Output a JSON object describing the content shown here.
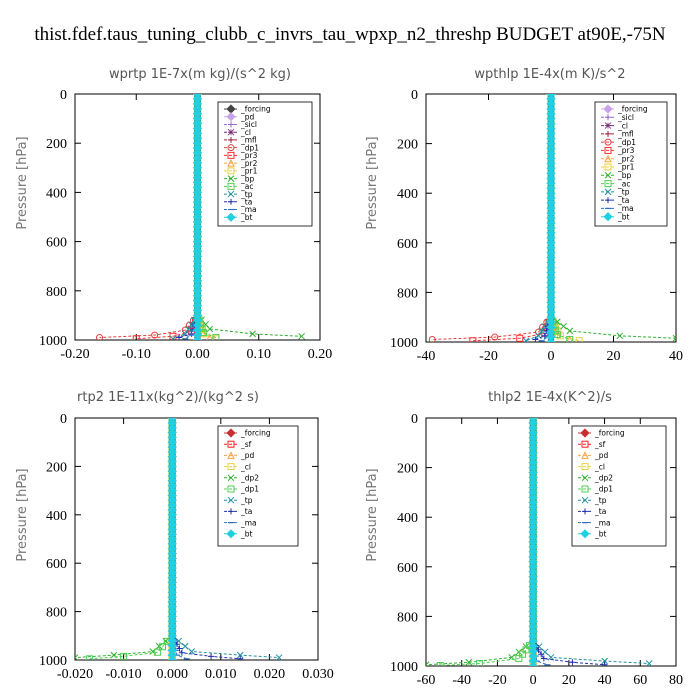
{
  "figure_title": "thist.fdef.taus_tuning_clubb_c_invrs_tau_wpxp_n2_threshp  BUDGET at90E,-75N",
  "chart_data": [
    {
      "type": "line",
      "title": "wprtp  1E-7x(m kg)/(s^2 kg)",
      "ylabel": "Pressure [hPa]",
      "xlim": [
        -0.2,
        0.2
      ],
      "ylim": [
        1000,
        0
      ],
      "xticks": [
        "-0.20",
        "-0.10",
        "0.00",
        "0.10",
        "0.20"
      ],
      "yticks": [
        "0",
        "200",
        "400",
        "600",
        "800",
        "1000"
      ],
      "series": [
        {
          "name": "_forcing",
          "color": "#444444",
          "marker": "diamond",
          "x": [
            0,
            0,
            0,
            0,
            0
          ],
          "y": [
            0,
            400,
            900,
            960,
            1000
          ]
        },
        {
          "name": "_pd",
          "color": "#c8a2e8",
          "marker": "diamond",
          "x": [
            0,
            0,
            0,
            0
          ],
          "y": [
            0,
            500,
            960,
            1000
          ]
        },
        {
          "name": "_sicl",
          "color": "#9966cc",
          "marker": "plus",
          "x": [
            0,
            0,
            0,
            0
          ],
          "y": [
            0,
            500,
            960,
            1000
          ]
        },
        {
          "name": "_cl",
          "color": "#7a2a7a",
          "marker": "star",
          "x": [
            0,
            0,
            0,
            0
          ],
          "y": [
            0,
            500,
            960,
            1000
          ]
        },
        {
          "name": "_mfl",
          "color": "#a0203a",
          "marker": "plus",
          "x": [
            0,
            0,
            0,
            0
          ],
          "y": [
            0,
            500,
            960,
            1000
          ]
        },
        {
          "name": "_dp1",
          "color": "#e04040",
          "marker": "circle",
          "x": [
            0,
            0,
            -0.02,
            -0.07,
            -0.16
          ],
          "y": [
            0,
            900,
            960,
            980,
            990
          ]
        },
        {
          "name": "_pr3",
          "color": "#ff3030",
          "marker": "square",
          "x": [
            0,
            0,
            -0.01,
            -0.04,
            -0.1
          ],
          "y": [
            0,
            900,
            965,
            985,
            995
          ]
        },
        {
          "name": "_pr2",
          "color": "#ffa040",
          "marker": "triangle",
          "x": [
            0,
            0,
            0.01,
            0.02
          ],
          "y": [
            0,
            900,
            970,
            990
          ]
        },
        {
          "name": "_pr1",
          "color": "#e8d040",
          "marker": "square",
          "x": [
            0,
            0,
            0.01,
            0.03
          ],
          "y": [
            0,
            900,
            975,
            995
          ]
        },
        {
          "name": "_bp",
          "color": "#30b030",
          "marker": "cross",
          "x": [
            0,
            0,
            0.02,
            0.09,
            0.17
          ],
          "y": [
            0,
            900,
            955,
            975,
            985
          ]
        },
        {
          "name": "_ac",
          "color": "#50d050",
          "marker": "square",
          "x": [
            0,
            0,
            0.01,
            0.03
          ],
          "y": [
            0,
            900,
            970,
            990
          ]
        },
        {
          "name": "_tp",
          "color": "#2090a0",
          "marker": "cross",
          "x": [
            0,
            0,
            -0.02,
            -0.04
          ],
          "y": [
            0,
            900,
            975,
            995
          ]
        },
        {
          "name": "_ta",
          "color": "#2030b0",
          "marker": "plus",
          "x": [
            0,
            0,
            -0.01,
            -0.03
          ],
          "y": [
            0,
            900,
            975,
            990
          ]
        },
        {
          "name": "_ma",
          "color": "#3070c0",
          "marker": "dash",
          "x": [
            0,
            0,
            -0.01,
            -0.02
          ],
          "y": [
            0,
            900,
            980,
            995
          ]
        },
        {
          "name": "_bt",
          "color": "#20d0e0",
          "marker": "diamond",
          "x": [
            0,
            0,
            0
          ],
          "y": [
            0,
            900,
            1000
          ]
        }
      ]
    },
    {
      "type": "line",
      "title": "wpthlp  1E-4x(m K)/s^2",
      "ylabel": "Pressure [hPa]",
      "xlim": [
        -40,
        40
      ],
      "ylim": [
        1000,
        0
      ],
      "xticks": [
        "-40",
        "-20",
        "0",
        "20",
        "40"
      ],
      "yticks": [
        "0",
        "200",
        "400",
        "600",
        "800",
        "1000"
      ],
      "series": [
        {
          "name": "_forcing",
          "color": "#c8a2e8",
          "marker": "diamond",
          "x": [
            0,
            0,
            0,
            0
          ],
          "y": [
            0,
            500,
            960,
            1000
          ]
        },
        {
          "name": "_sicl",
          "color": "#9966cc",
          "marker": "plus",
          "x": [
            0,
            0,
            0,
            0
          ],
          "y": [
            0,
            500,
            960,
            1000
          ]
        },
        {
          "name": "_cl",
          "color": "#7a2a7a",
          "marker": "star",
          "x": [
            0,
            0,
            0,
            0
          ],
          "y": [
            0,
            500,
            960,
            1000
          ]
        },
        {
          "name": "_mfl",
          "color": "#a0203a",
          "marker": "plus",
          "x": [
            0,
            0,
            0,
            0
          ],
          "y": [
            0,
            500,
            960,
            1000
          ]
        },
        {
          "name": "_dp1",
          "color": "#e04040",
          "marker": "circle",
          "x": [
            0,
            0,
            -4,
            -18,
            -38
          ],
          "y": [
            0,
            900,
            960,
            980,
            990
          ]
        },
        {
          "name": "_pr3",
          "color": "#ff3030",
          "marker": "square",
          "x": [
            0,
            0,
            -2,
            -10,
            -25
          ],
          "y": [
            0,
            900,
            965,
            985,
            995
          ]
        },
        {
          "name": "_pr2",
          "color": "#ffa040",
          "marker": "triangle",
          "x": [
            0,
            0,
            2,
            6
          ],
          "y": [
            0,
            900,
            970,
            990
          ]
        },
        {
          "name": "_pr1",
          "color": "#e8d040",
          "marker": "square",
          "x": [
            0,
            0,
            3,
            9
          ],
          "y": [
            0,
            900,
            975,
            995
          ]
        },
        {
          "name": "_bp",
          "color": "#30b030",
          "marker": "cross",
          "x": [
            0,
            0,
            6,
            22,
            40
          ],
          "y": [
            0,
            900,
            955,
            975,
            985
          ]
        },
        {
          "name": "_ac",
          "color": "#50d050",
          "marker": "square",
          "x": [
            0,
            0,
            2,
            6
          ],
          "y": [
            0,
            900,
            970,
            990
          ]
        },
        {
          "name": "_tp",
          "color": "#2090a0",
          "marker": "cross",
          "x": [
            0,
            0,
            -4,
            -8
          ],
          "y": [
            0,
            900,
            975,
            995
          ]
        },
        {
          "name": "_ta",
          "color": "#2030b0",
          "marker": "plus",
          "x": [
            0,
            0,
            -2,
            -5
          ],
          "y": [
            0,
            900,
            975,
            990
          ]
        },
        {
          "name": "_ma",
          "color": "#3070c0",
          "marker": "dash",
          "x": [
            0,
            0,
            -1,
            -3
          ],
          "y": [
            0,
            900,
            980,
            995
          ]
        },
        {
          "name": "_bt",
          "color": "#20d0e0",
          "marker": "diamond",
          "x": [
            0,
            0,
            0
          ],
          "y": [
            0,
            900,
            1000
          ]
        }
      ]
    },
    {
      "type": "line",
      "title": "rtp2  1E-11x(kg^2)/(kg^2 s)",
      "ylabel": "Pressure [hPa]",
      "xlim": [
        -0.02,
        0.03
      ],
      "ylim": [
        1000,
        0
      ],
      "xticks": [
        "-0.020",
        "-0.010",
        "0.000",
        "0.010",
        "0.020",
        "0.030"
      ],
      "yticks": [
        "0",
        "200",
        "400",
        "600",
        "800",
        "1000"
      ],
      "series": [
        {
          "name": "_forcing",
          "color": "#c83030",
          "marker": "diamond",
          "x": [
            0,
            0,
            0,
            0
          ],
          "y": [
            0,
            500,
            960,
            1000
          ]
        },
        {
          "name": "_sf",
          "color": "#ff2020",
          "marker": "square",
          "x": [
            0,
            0,
            0,
            0
          ],
          "y": [
            0,
            500,
            960,
            1000
          ]
        },
        {
          "name": "_pd",
          "color": "#ffa040",
          "marker": "triangle",
          "x": [
            0,
            0,
            0,
            0
          ],
          "y": [
            0,
            500,
            960,
            1000
          ]
        },
        {
          "name": "_cl",
          "color": "#e8d040",
          "marker": "square",
          "x": [
            0,
            0,
            0,
            0
          ],
          "y": [
            0,
            500,
            960,
            1000
          ]
        },
        {
          "name": "_dp2",
          "color": "#30b030",
          "marker": "cross",
          "x": [
            0,
            0,
            -0.004,
            -0.012,
            -0.02
          ],
          "y": [
            0,
            900,
            965,
            980,
            990
          ]
        },
        {
          "name": "_dp1",
          "color": "#50d050",
          "marker": "square",
          "x": [
            0,
            0,
            -0.003,
            -0.01,
            -0.017
          ],
          "y": [
            0,
            900,
            968,
            985,
            995
          ]
        },
        {
          "name": "_tp",
          "color": "#2090a0",
          "marker": "cross",
          "x": [
            0,
            0,
            0.004,
            0.014,
            0.022
          ],
          "y": [
            0,
            900,
            965,
            980,
            990
          ]
        },
        {
          "name": "_ta",
          "color": "#2030b0",
          "marker": "plus",
          "x": [
            0,
            0,
            0.002,
            0.008,
            0.014
          ],
          "y": [
            0,
            900,
            970,
            985,
            995
          ]
        },
        {
          "name": "_ma",
          "color": "#3070c0",
          "marker": "dash",
          "x": [
            0,
            0,
            0.001,
            0.003
          ],
          "y": [
            0,
            900,
            980,
            995
          ]
        },
        {
          "name": "_bt",
          "color": "#20d0e0",
          "marker": "diamond",
          "x": [
            0,
            0,
            0
          ],
          "y": [
            0,
            900,
            1000
          ]
        }
      ]
    },
    {
      "type": "line",
      "title": "thlp2  1E-4x(K^2)/s",
      "ylabel": "Pressure [hPa]",
      "xlim": [
        -60,
        80
      ],
      "ylim": [
        1000,
        0
      ],
      "xticks": [
        "-60",
        "-40",
        "-20",
        "0",
        "20",
        "40",
        "60",
        "80"
      ],
      "yticks": [
        "0",
        "200",
        "400",
        "600",
        "800",
        "1000"
      ],
      "series": [
        {
          "name": "_forcing",
          "color": "#c83030",
          "marker": "diamond",
          "x": [
            0,
            0,
            0,
            0
          ],
          "y": [
            0,
            500,
            960,
            1000
          ]
        },
        {
          "name": "_sf",
          "color": "#ff2020",
          "marker": "square",
          "x": [
            0,
            0,
            0,
            0
          ],
          "y": [
            0,
            500,
            960,
            1000
          ]
        },
        {
          "name": "_pd",
          "color": "#ffa040",
          "marker": "triangle",
          "x": [
            0,
            0,
            0,
            0
          ],
          "y": [
            0,
            500,
            960,
            1000
          ]
        },
        {
          "name": "_cl",
          "color": "#e8d040",
          "marker": "square",
          "x": [
            0,
            0,
            0,
            0
          ],
          "y": [
            0,
            500,
            960,
            1000
          ]
        },
        {
          "name": "_dp2",
          "color": "#30b030",
          "marker": "cross",
          "x": [
            0,
            0,
            -12,
            -36,
            -60
          ],
          "y": [
            0,
            900,
            965,
            985,
            995
          ]
        },
        {
          "name": "_dp1",
          "color": "#50d050",
          "marker": "square",
          "x": [
            0,
            0,
            -8,
            -30,
            -52
          ],
          "y": [
            0,
            900,
            970,
            990,
            998
          ]
        },
        {
          "name": "_tp",
          "color": "#2090a0",
          "marker": "cross",
          "x": [
            0,
            0,
            10,
            40,
            65
          ],
          "y": [
            0,
            900,
            965,
            980,
            990
          ]
        },
        {
          "name": "_ta",
          "color": "#2030b0",
          "marker": "plus",
          "x": [
            0,
            0,
            6,
            22,
            40
          ],
          "y": [
            0,
            900,
            970,
            985,
            995
          ]
        },
        {
          "name": "_ma",
          "color": "#3070c0",
          "marker": "dash",
          "x": [
            0,
            0,
            2,
            8
          ],
          "y": [
            0,
            900,
            980,
            995
          ]
        },
        {
          "name": "_bt",
          "color": "#20d0e0",
          "marker": "diamond",
          "x": [
            0,
            0,
            0
          ],
          "y": [
            0,
            900,
            1000
          ]
        }
      ]
    }
  ]
}
